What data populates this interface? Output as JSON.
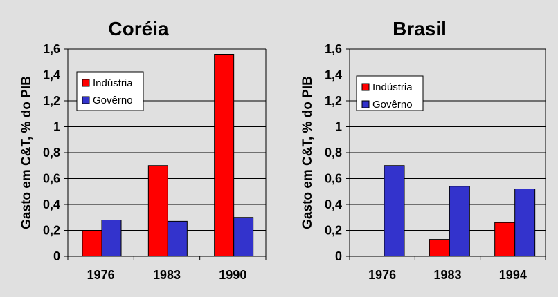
{
  "chart_data": [
    {
      "type": "bar",
      "title": "Coréia",
      "xlabel": "",
      "ylabel": "Gasto em C&T, % do PIB",
      "categories": [
        "1976",
        "1983",
        "1990"
      ],
      "series": [
        {
          "name": "Indústria",
          "color": "#ff0000",
          "values": [
            0.2,
            0.7,
            1.56
          ]
        },
        {
          "name": "Govêrno",
          "color": "#3333cc",
          "values": [
            0.28,
            0.27,
            0.3
          ]
        }
      ],
      "ylim": [
        0,
        1.6
      ],
      "yticks": [
        "0",
        "0,2",
        "0,4",
        "0,6",
        "0,8",
        "1",
        "1,2",
        "1,4",
        "1,6"
      ],
      "grid": true,
      "legend": "upper-left"
    },
    {
      "type": "bar",
      "title": "Brasil",
      "xlabel": "",
      "ylabel": "Gasto em C&T, % do PIB",
      "categories": [
        "1976",
        "1983",
        "1994"
      ],
      "series": [
        {
          "name": "Indústria",
          "color": "#ff0000",
          "values": [
            0,
            0.13,
            0.26
          ]
        },
        {
          "name": "Govêrno",
          "color": "#3333cc",
          "values": [
            0.7,
            0.54,
            0.52
          ]
        }
      ],
      "ylim": [
        0,
        1.6
      ],
      "yticks": [
        "0",
        "0,2",
        "0,4",
        "0,6",
        "0,8",
        "1",
        "1,2",
        "1,4",
        "1,6"
      ],
      "grid": true,
      "legend": "upper-left"
    }
  ]
}
